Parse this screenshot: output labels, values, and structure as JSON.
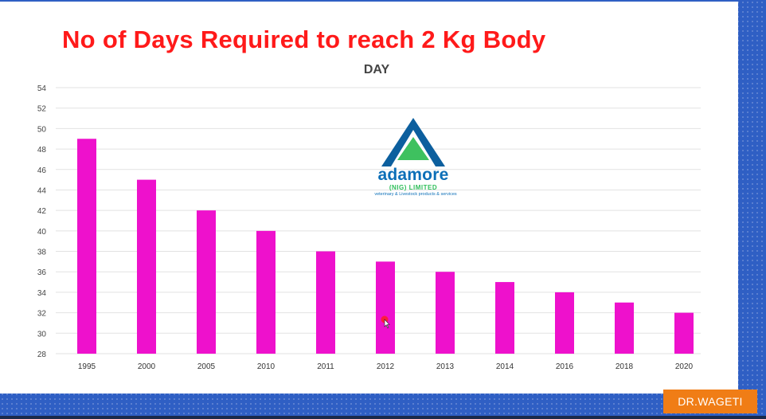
{
  "slide": {
    "title": "No of Days Required to reach 2 Kg Body"
  },
  "logo": {
    "name": "adamore",
    "subtitle": "(NIG) LIMITED",
    "tagline": "veterinary & Livestock products & services"
  },
  "presenter_label": "DR.WAGETI",
  "colors": {
    "bar": "#ee11cc",
    "title": "#ff1a1a",
    "frame": "#2f5fc4",
    "label_bg": "#f07d16"
  },
  "chart_data": {
    "type": "bar",
    "title": "DAY",
    "xlabel": "",
    "ylabel": "",
    "categories": [
      "1995",
      "2000",
      "2005",
      "2010",
      "2011",
      "2012",
      "2013",
      "2014",
      "2016",
      "2018",
      "2020"
    ],
    "values": [
      49,
      45,
      42,
      40,
      38,
      37,
      36,
      35,
      34,
      33,
      32
    ],
    "ylim": [
      28,
      54
    ],
    "yticks": [
      28,
      30,
      32,
      34,
      36,
      38,
      40,
      42,
      44,
      46,
      48,
      50,
      52,
      54
    ],
    "grid": true,
    "legend": "none"
  }
}
